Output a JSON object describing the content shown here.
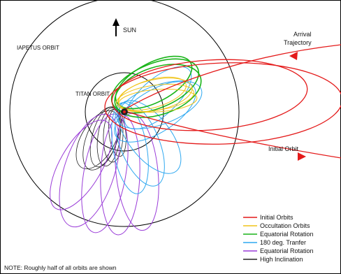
{
  "labels": {
    "sun": "SUN",
    "iapetus_orbit": "IAPETUS ORBIT",
    "titan_orbit": "TITAN ORBIT",
    "arrival_line1": "Arrival",
    "arrival_line2": "Trajectory",
    "initial_orbit": "Initial Orbit"
  },
  "legend": [
    {
      "label": "Initial Orbits",
      "color": "#e41a1a"
    },
    {
      "label": "Occultation Orbits",
      "color": "#f0c419"
    },
    {
      "label": "Equatorial Rotation",
      "color": "#19b419"
    },
    {
      "label": "180 deg. Tranfer",
      "color": "#2fa8f0"
    },
    {
      "label": "Equatorial Rotation",
      "color": "#9a3cd8"
    },
    {
      "label": "High Inclination",
      "color": "#222222"
    }
  ],
  "note": "NOTE: Roughly half of all orbits are shown",
  "colors": {
    "frame": "#000000",
    "initial": "#e41a1a",
    "occultation": "#f0c419",
    "equatorial_green": "#19b419",
    "transfer_blue": "#2fa8f0",
    "equatorial_purple": "#9a3cd8",
    "high_inclination": "#222222"
  }
}
